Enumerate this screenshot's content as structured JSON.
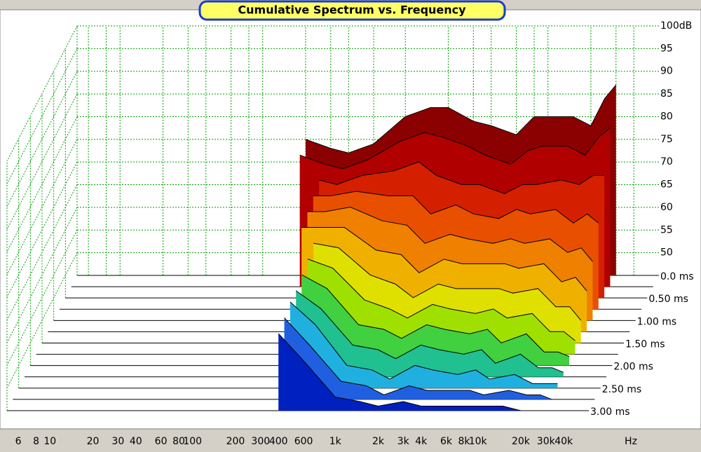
{
  "chart_data": {
    "type": "waterfall",
    "title": "Cumulative Spectrum vs. Frequency",
    "x_unit": "Hz",
    "log_x": true,
    "grid": true,
    "xlim": [
      5,
      60000
    ],
    "xticks": [
      6,
      8,
      10,
      20,
      30,
      40,
      60,
      80,
      100,
      200,
      300,
      400,
      600,
      {
        "value": 1000,
        "label": "1k"
      },
      {
        "value": 2000,
        "label": "2k"
      },
      {
        "value": 3000,
        "label": "3k"
      },
      {
        "value": 4000,
        "label": "4k"
      },
      {
        "value": 6000,
        "label": "6k"
      },
      {
        "value": 8000,
        "label": "8k"
      },
      {
        "value": 10000,
        "label": "10k"
      },
      {
        "value": 20000,
        "label": "20k"
      },
      {
        "value": 30000,
        "label": "30k"
      },
      {
        "value": 40000,
        "label": "40k"
      }
    ],
    "ylim": [
      45,
      100
    ],
    "yticks": [
      50,
      55,
      60,
      65,
      70,
      75,
      80,
      85,
      90,
      95,
      {
        "value": 100,
        "label": "100dB"
      }
    ],
    "zlim": [
      0,
      3
    ],
    "zticks": [
      {
        "value": 0,
        "label": "0.0 ms"
      },
      {
        "value": 0.5,
        "label": "0.50 ms"
      },
      {
        "value": 1,
        "label": "1.00 ms"
      },
      {
        "value": 1.5,
        "label": "1.50 ms"
      },
      {
        "value": 2,
        "label": "2.00 ms"
      },
      {
        "value": 2.5,
        "label": "2.50 ms"
      },
      {
        "value": 3,
        "label": "3.00 ms"
      }
    ],
    "x": [
      200,
      300,
      400,
      600,
      1000,
      1500,
      2000,
      3000,
      4000,
      6000,
      8000,
      10000,
      15000,
      20000,
      25000,
      30000
    ],
    "series": [
      {
        "z": 0,
        "color": "#8b0000",
        "values": [
          75,
          73,
          72,
          74,
          80,
          82,
          82,
          79,
          78,
          76,
          80,
          80,
          80,
          78,
          84,
          87
        ]
      },
      {
        "z": 0.25,
        "color": "#b00000",
        "values": [
          74,
          72,
          71,
          73,
          77,
          79,
          78,
          76,
          74,
          72,
          75,
          76,
          76,
          74,
          78,
          80
        ]
      },
      {
        "z": 0.5,
        "color": "#d42000",
        "values": [
          null,
          71,
          70,
          72,
          73,
          75,
          72,
          70,
          70,
          68,
          70,
          70,
          71,
          70,
          72,
          72
        ]
      },
      {
        "z": 0.75,
        "color": "#e85000",
        "values": [
          null,
          70,
          70,
          71,
          70,
          70,
          66,
          68,
          66,
          65,
          67,
          66,
          67,
          64,
          66,
          64
        ]
      },
      {
        "z": 1,
        "color": "#f08000",
        "values": [
          null,
          69,
          69,
          70,
          67,
          66,
          62,
          64,
          63,
          62,
          63,
          62,
          63,
          60,
          61,
          58
        ]
      },
      {
        "z": 1.25,
        "color": "#f0b000",
        "values": [
          null,
          68,
          68,
          68,
          63,
          62,
          58,
          61,
          60,
          60,
          60,
          59,
          60,
          56,
          57,
          54
        ]
      },
      {
        "z": 1.5,
        "color": "#e0e000",
        "values": [
          null,
          null,
          67,
          66,
          60,
          58,
          55,
          58,
          57,
          57,
          57,
          56,
          57,
          53,
          53,
          50
        ]
      },
      {
        "z": 1.75,
        "color": "#a0e000",
        "values": [
          null,
          null,
          66,
          64,
          57,
          55,
          53,
          56,
          55,
          54,
          55,
          53,
          54,
          50,
          50,
          48
        ]
      },
      {
        "z": 2,
        "color": "#40d040",
        "values": [
          null,
          null,
          65,
          62,
          54,
          53,
          51,
          54,
          53,
          52,
          53,
          50,
          52,
          48,
          48,
          47
        ]
      },
      {
        "z": 2.25,
        "color": "#20c090",
        "values": [
          null,
          null,
          64,
          60,
          52,
          51,
          49,
          52,
          51,
          50,
          51,
          48,
          50,
          47,
          47,
          46
        ]
      },
      {
        "z": 2.5,
        "color": "#20b0e0",
        "values": [
          null,
          null,
          64,
          59,
          50,
          49,
          47,
          50,
          49,
          48,
          49,
          47,
          48,
          46,
          46,
          46
        ]
      },
      {
        "z": 2.75,
        "color": "#2060e0",
        "values": [
          null,
          null,
          63,
          57,
          49,
          48,
          46,
          48,
          47,
          47,
          47,
          46,
          47,
          46,
          46,
          45
        ]
      },
      {
        "z": 3,
        "color": "#0020c0",
        "values": [
          null,
          null,
          62,
          56,
          48,
          47,
          46,
          47,
          46,
          46,
          46,
          46,
          46,
          45,
          45,
          45
        ]
      }
    ]
  }
}
